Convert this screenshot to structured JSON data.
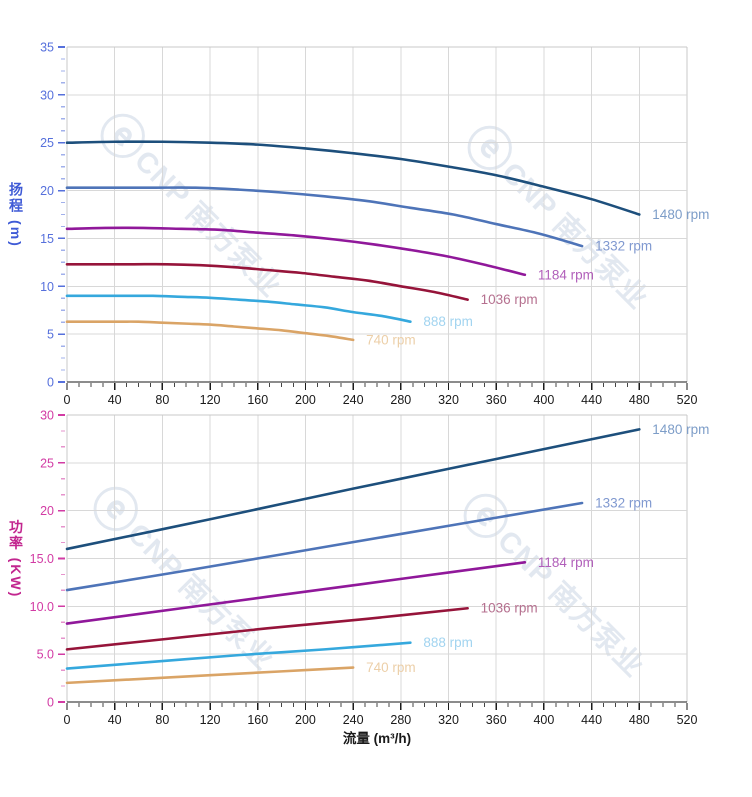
{
  "watermark": {
    "logo": "ⓔ",
    "brand": "CNP 南方泵业"
  },
  "x_axis_title": "流量 (m³/h)",
  "chart_data": [
    {
      "type": "line",
      "name": "head-curves",
      "ylabel": "扬程 (m)",
      "axis_color": "#5670dc",
      "title_color": "#3f5bd6",
      "grid": true,
      "legend_position": "end-of-line-labels",
      "xlim": [
        0,
        520
      ],
      "ylim": [
        0,
        35
      ],
      "x_ticks": [
        0,
        40,
        80,
        120,
        160,
        200,
        240,
        280,
        320,
        360,
        400,
        440,
        480,
        520
      ],
      "x_minor_step": 10,
      "y_ticks": [
        {
          "v": 0,
          "t": "0"
        },
        {
          "v": 5,
          "t": "5"
        },
        {
          "v": 10,
          "t": "10"
        },
        {
          "v": 15,
          "t": "15"
        },
        {
          "v": 20,
          "t": "20"
        },
        {
          "v": 25,
          "t": "25"
        },
        {
          "v": 30,
          "t": "30"
        },
        {
          "v": 35,
          "t": "35"
        }
      ],
      "y_minor_div": 4,
      "series": [
        {
          "name": "1480 rpm",
          "color": "#1d4f7c",
          "label_color": "#7d9dc8",
          "points": [
            [
              0,
              25.0
            ],
            [
              40,
              25.1
            ],
            [
              80,
              25.1
            ],
            [
              120,
              25.0
            ],
            [
              160,
              24.8
            ],
            [
              200,
              24.4
            ],
            [
              240,
              23.9
            ],
            [
              280,
              23.3
            ],
            [
              320,
              22.5
            ],
            [
              360,
              21.6
            ],
            [
              400,
              20.4
            ],
            [
              440,
              19.1
            ],
            [
              480,
              17.5
            ]
          ]
        },
        {
          "name": "1332 rpm",
          "color": "#4e74b8",
          "label_color": "#8099d0",
          "points": [
            [
              0,
              20.3
            ],
            [
              36,
              20.3
            ],
            [
              72,
              20.3
            ],
            [
              108,
              20.3
            ],
            [
              144,
              20.1
            ],
            [
              180,
              19.8
            ],
            [
              216,
              19.4
            ],
            [
              252,
              18.9
            ],
            [
              288,
              18.2
            ],
            [
              324,
              17.5
            ],
            [
              360,
              16.5
            ],
            [
              396,
              15.5
            ],
            [
              432,
              14.2
            ]
          ]
        },
        {
          "name": "1184 rpm",
          "color": "#90189a",
          "label_color": "#b15fba",
          "points": [
            [
              0,
              16.0
            ],
            [
              32,
              16.1
            ],
            [
              64,
              16.1
            ],
            [
              96,
              16.0
            ],
            [
              128,
              15.9
            ],
            [
              160,
              15.6
            ],
            [
              192,
              15.3
            ],
            [
              224,
              14.9
            ],
            [
              256,
              14.4
            ],
            [
              288,
              13.8
            ],
            [
              320,
              13.1
            ],
            [
              352,
              12.2
            ],
            [
              384,
              11.2
            ]
          ]
        },
        {
          "name": "1036 rpm",
          "color": "#96143a",
          "label_color": "#b5708f",
          "points": [
            [
              0,
              12.3
            ],
            [
              28,
              12.3
            ],
            [
              56,
              12.3
            ],
            [
              84,
              12.3
            ],
            [
              112,
              12.2
            ],
            [
              140,
              12.0
            ],
            [
              168,
              11.7
            ],
            [
              196,
              11.4
            ],
            [
              224,
              11.0
            ],
            [
              252,
              10.6
            ],
            [
              280,
              10.0
            ],
            [
              308,
              9.4
            ],
            [
              336,
              8.6
            ]
          ]
        },
        {
          "name": "888 rpm",
          "color": "#35a8dd",
          "label_color": "#a2d4f0",
          "points": [
            [
              0,
              9.0
            ],
            [
              24,
              9.0
            ],
            [
              48,
              9.0
            ],
            [
              72,
              9.0
            ],
            [
              96,
              8.9
            ],
            [
              120,
              8.8
            ],
            [
              144,
              8.6
            ],
            [
              168,
              8.4
            ],
            [
              192,
              8.1
            ],
            [
              216,
              7.8
            ],
            [
              240,
              7.3
            ],
            [
              264,
              6.9
            ],
            [
              288,
              6.3
            ]
          ]
        },
        {
          "name": "740 rpm",
          "color": "#daa466",
          "label_color": "#eccfa8",
          "points": [
            [
              0,
              6.3
            ],
            [
              20,
              6.3
            ],
            [
              40,
              6.3
            ],
            [
              60,
              6.3
            ],
            [
              80,
              6.2
            ],
            [
              100,
              6.1
            ],
            [
              120,
              6.0
            ],
            [
              140,
              5.8
            ],
            [
              160,
              5.6
            ],
            [
              180,
              5.4
            ],
            [
              200,
              5.1
            ],
            [
              220,
              4.8
            ],
            [
              240,
              4.4
            ]
          ]
        }
      ]
    },
    {
      "type": "line",
      "name": "power-curves",
      "ylabel": "功率 (KW)",
      "axis_color": "#d23ba4",
      "title_color": "#c2268f",
      "grid": true,
      "legend_position": "end-of-line-labels",
      "xlim": [
        0,
        520
      ],
      "ylim": [
        0,
        30
      ],
      "x_ticks": [
        0,
        40,
        80,
        120,
        160,
        200,
        240,
        280,
        320,
        360,
        400,
        440,
        480,
        520
      ],
      "x_minor_step": 10,
      "y_ticks": [
        {
          "v": 0,
          "t": "0"
        },
        {
          "v": 5,
          "t": "5.0"
        },
        {
          "v": 10,
          "t": "10.0"
        },
        {
          "v": 15,
          "t": "15.0"
        },
        {
          "v": 20,
          "t": "20"
        },
        {
          "v": 25,
          "t": "25"
        },
        {
          "v": 30,
          "t": "30"
        }
      ],
      "y_minor_div": 3,
      "series": [
        {
          "name": "1480 rpm",
          "color": "#1d4f7c",
          "label_color": "#7d9dc8",
          "points": [
            [
              0,
              16.0
            ],
            [
              120,
              19.1
            ],
            [
              240,
              22.3
            ],
            [
              360,
              25.4
            ],
            [
              480,
              28.5
            ]
          ]
        },
        {
          "name": "1332 rpm",
          "color": "#4e74b8",
          "label_color": "#8099d0",
          "points": [
            [
              0,
              11.7
            ],
            [
              108,
              13.9
            ],
            [
              216,
              16.2
            ],
            [
              324,
              18.5
            ],
            [
              432,
              20.8
            ]
          ]
        },
        {
          "name": "1184 rpm",
          "color": "#90189a",
          "label_color": "#b15fba",
          "points": [
            [
              0,
              8.2
            ],
            [
              96,
              9.8
            ],
            [
              192,
              11.4
            ],
            [
              288,
              13.0
            ],
            [
              384,
              14.6
            ]
          ]
        },
        {
          "name": "1036 rpm",
          "color": "#96143a",
          "label_color": "#b5708f",
          "points": [
            [
              0,
              5.5
            ],
            [
              84,
              6.6
            ],
            [
              168,
              7.7
            ],
            [
              252,
              8.7
            ],
            [
              336,
              9.8
            ]
          ]
        },
        {
          "name": "888 rpm",
          "color": "#35a8dd",
          "label_color": "#a2d4f0",
          "points": [
            [
              0,
              3.5
            ],
            [
              72,
              4.2
            ],
            [
              144,
              4.9
            ],
            [
              216,
              5.5
            ],
            [
              288,
              6.2
            ]
          ]
        },
        {
          "name": "740 rpm",
          "color": "#daa466",
          "label_color": "#eccfa8",
          "points": [
            [
              0,
              2.0
            ],
            [
              60,
              2.4
            ],
            [
              120,
              2.8
            ],
            [
              180,
              3.2
            ],
            [
              240,
              3.6
            ]
          ]
        }
      ]
    }
  ]
}
